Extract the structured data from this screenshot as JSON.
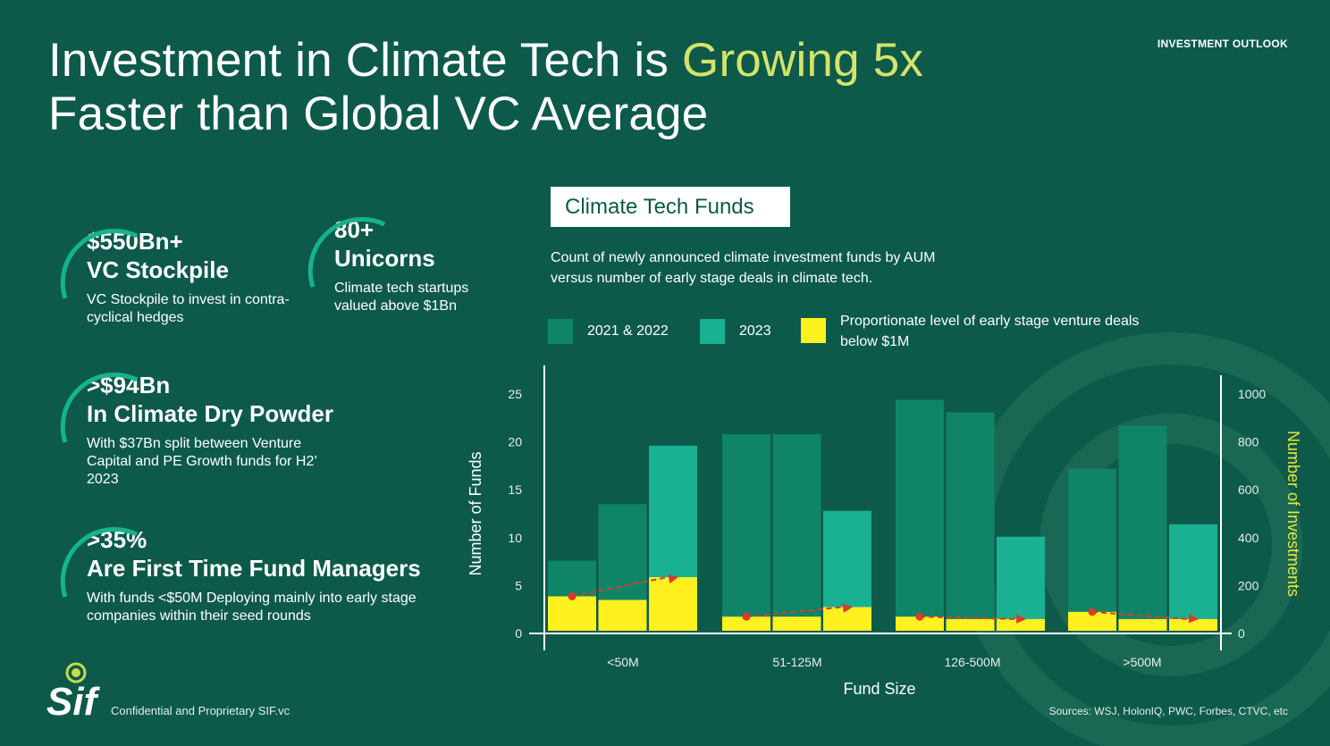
{
  "header": {
    "title_part1": "Investment in Climate Tech is ",
    "title_highlight": "Growing 5x",
    "title_part2": "Faster than Global VC Average",
    "section_label": "INVESTMENT OUTLOOK"
  },
  "stats": [
    {
      "big1": "$550Bn+",
      "big2": "VC Stockpile",
      "sub": "VC Stockpile to invest in contra-cyclical hedges"
    },
    {
      "big1": "80+",
      "big2": "Unicorns",
      "sub": "Climate tech startups valued above $1Bn"
    },
    {
      "big1": ">$94Bn",
      "big2": "In Climate Dry Powder",
      "sub": "With $37Bn split between Venture Capital and PE Growth funds for H2’ 2023"
    },
    {
      "big1": ">35%",
      "big2": "Are First Time Fund Managers",
      "sub": "With funds <$50M Deploying mainly into early stage companies within their seed rounds"
    }
  ],
  "chart_header": {
    "title": "Climate Tech Funds",
    "description": "Count of newly announced climate investment funds by AUM versus number of early stage deals in climate tech."
  },
  "legend": [
    {
      "label": "2021 & 2022",
      "color": "#0f8467"
    },
    {
      "label": "2023",
      "color": "#1ab092"
    },
    {
      "label": "Proportionate level of early stage venture deals below $1M",
      "color": "#fff01f"
    }
  ],
  "colors": {
    "background": "#0d5a4b",
    "bar_2021_2022": "#0f8467",
    "bar_2023": "#1ab092",
    "early_stage": "#fff01f",
    "trend": "#d93b30",
    "highlight_text": "#d4e36a"
  },
  "chart_data": {
    "type": "bar",
    "xlabel": "Fund Size",
    "ylabel": "Number of Funds",
    "y2label": "Number of Investments",
    "ylim": [
      0,
      25
    ],
    "y2lim": [
      0,
      1000
    ],
    "yticks": [
      0,
      5,
      10,
      15,
      20,
      25
    ],
    "y2ticks": [
      0,
      200,
      400,
      600,
      800,
      1000
    ],
    "categories": [
      "<50M",
      "51-125M",
      "126-500M",
      ">500M"
    ],
    "groups": [
      {
        "category": "<50M",
        "bars": [
          {
            "series": "2021 & 2022",
            "value": 7.6
          },
          {
            "series": "2021 & 2022",
            "value": 13.5
          },
          {
            "series": "2023",
            "value": 19.6
          }
        ],
        "early_stage_investments": [
          155,
          140,
          235
        ]
      },
      {
        "category": "51-125M",
        "bars": [
          {
            "series": "2021 & 2022",
            "value": 20.8
          },
          {
            "series": "2021 & 2022",
            "value": 20.8
          },
          {
            "series": "2023",
            "value": 12.8
          }
        ],
        "early_stage_investments": [
          70,
          70,
          110
        ]
      },
      {
        "category": "126-500M",
        "bars": [
          {
            "series": "2021 & 2022",
            "value": 24.4
          },
          {
            "series": "2021 & 2022",
            "value": 23.1
          },
          {
            "series": "2023",
            "value": 10.1
          }
        ],
        "early_stage_investments": [
          70,
          60,
          60
        ]
      },
      {
        "category": ">500M",
        "bars": [
          {
            "series": "2021 & 2022",
            "value": 17.2
          },
          {
            "series": "2021 & 2022",
            "value": 21.7
          },
          {
            "series": "2023",
            "value": 11.4
          }
        ],
        "early_stage_investments": [
          90,
          60,
          60
        ]
      }
    ],
    "trend_points": [
      [
        0,
        155
      ],
      [
        2,
        235
      ],
      [
        3,
        70
      ],
      [
        5,
        110
      ],
      [
        6,
        70
      ],
      [
        8,
        60
      ],
      [
        9,
        90
      ],
      [
        11,
        60
      ]
    ],
    "grid": false
  },
  "footer": {
    "logo_text": "Sif",
    "confidential": "Confidential and Proprietary SIF.vc",
    "sources": "Sources: WSJ, HolonIQ, PWC, Forbes, CTVC, etc"
  }
}
